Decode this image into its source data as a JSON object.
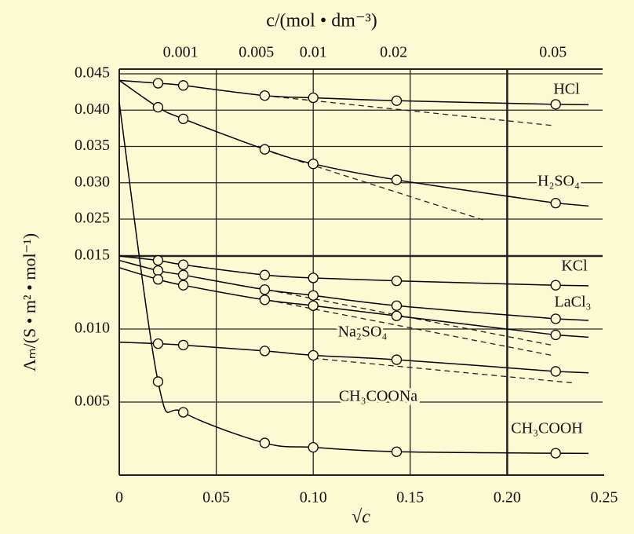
{
  "chart_data": {
    "type": "line",
    "x_label": "√c",
    "x2_label": "c/(mol • dm⁻³)",
    "y_label": "Λₘ/(S • m² • mol⁻¹)",
    "xlim": [
      0,
      0.25
    ],
    "xticks": [
      0,
      0.05,
      {
        "value": 0.1,
        "label": "0.10"
      },
      0.15,
      {
        "value": 0.2,
        "label": "0.20"
      },
      0.25
    ],
    "x2scale": "sqrt",
    "x2ticks": [
      0.001,
      0.005,
      0.01,
      0.02,
      0.05
    ],
    "ylim": [
      0,
      0.045
    ],
    "ybreak": [
      0.015,
      0.025
    ],
    "yticks": [
      0.005,
      {
        "value": 0.01,
        "label": "0.010"
      },
      0.015,
      0.025,
      {
        "value": 0.03,
        "label": "0.030"
      },
      0.035,
      {
        "value": 0.04,
        "label": "0.040"
      },
      0.045
    ],
    "grid": true,
    "color": "#000000",
    "x": [
      0.02,
      0.033,
      0.075,
      0.1,
      0.143,
      0.225
    ],
    "series": [
      {
        "name": "HCl",
        "limit": 0.0441,
        "values": [
          0.0437,
          0.0434,
          0.042,
          0.0417,
          0.0413,
          0.0408
        ]
      },
      {
        "name": "H₂SO₄",
        "limit": 0.0441,
        "values": [
          0.0404,
          0.0388,
          0.0346,
          0.0326,
          0.0304,
          0.0272
        ]
      },
      {
        "name": "KCl",
        "limit": 0.015,
        "values": [
          0.0147,
          0.0144,
          0.0137,
          0.0135,
          0.0133,
          0.013
        ]
      },
      {
        "name": "LaCl₃",
        "limit": 0.0147,
        "values": [
          0.014,
          0.0137,
          0.0127,
          0.0123,
          0.0116,
          0.0107
        ]
      },
      {
        "name": "Na₂SO₄",
        "limit": 0.0142,
        "values": [
          0.0134,
          0.013,
          0.012,
          0.0116,
          0.0109,
          0.0096
        ]
      },
      {
        "name": "CH₃COONa",
        "limit": 0.0091,
        "values": [
          0.009,
          0.0089,
          0.0085,
          0.0082,
          0.0079,
          0.0071
        ]
      },
      {
        "name": "CH₃COOH",
        "limit": 0.041,
        "values": [
          0.0064,
          0.0043,
          0.0022,
          0.0019,
          0.0016,
          0.0015
        ]
      }
    ],
    "dashed": [
      {
        "x": [
          0.075,
          0.223
        ],
        "values": [
          0.042,
          0.0379
        ]
      },
      {
        "x": [
          0.074,
          0.1875
        ],
        "values": [
          0.0346,
          0.0248
        ]
      },
      {
        "x": [
          0.072,
          0.223
        ],
        "values": [
          0.0128,
          0.0089
        ]
      },
      {
        "x": [
          0.072,
          0.223
        ],
        "values": [
          0.0121,
          0.0082
        ]
      },
      {
        "x": [
          0.1,
          0.235
        ],
        "values": [
          0.008,
          0.0063
        ]
      }
    ]
  }
}
